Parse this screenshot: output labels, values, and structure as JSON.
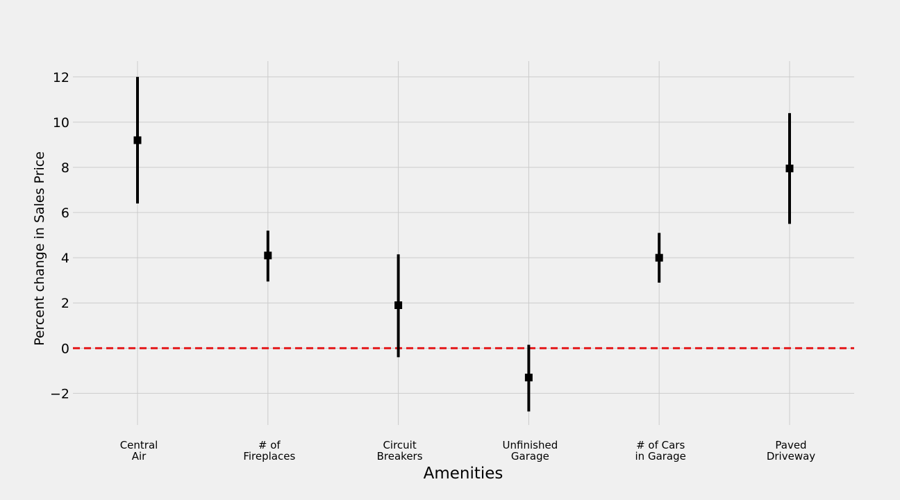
{
  "chart_data": {
    "type": "errorbar",
    "title": "",
    "xlabel": "Amenities",
    "ylabel": "Percent change in Sales Price",
    "categories": [
      [
        "Central",
        "Air"
      ],
      [
        "# of",
        "Fireplaces"
      ],
      [
        "Circuit",
        "Breakers"
      ],
      [
        "Unfinished",
        "Garage"
      ],
      [
        "# of Cars",
        "in Garage"
      ],
      [
        "Paved",
        "Driveway"
      ]
    ],
    "series": [
      {
        "values": [
          9.2,
          4.1,
          1.9,
          -1.3,
          4.0,
          7.95
        ],
        "lower": [
          6.4,
          2.95,
          -0.4,
          -2.8,
          2.9,
          5.5
        ],
        "upper": [
          12.0,
          5.2,
          4.15,
          0.15,
          5.1,
          10.4
        ]
      }
    ],
    "ylim": [
      -3.4,
      12.7
    ],
    "yticks": [
      -2,
      0,
      2,
      4,
      6,
      8,
      10,
      12
    ],
    "reference_line": {
      "y": 0,
      "style": "dashed",
      "color": "#e41a1c"
    },
    "marker_color": "#000000",
    "grid": true,
    "legend": "none"
  }
}
